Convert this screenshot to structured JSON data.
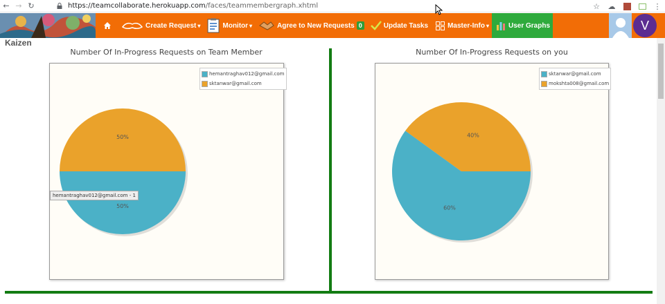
{
  "browser": {
    "url_host": "https://teamcollaborate.herokuapp.com",
    "url_path": "/faces/teammembergraph.xhtml"
  },
  "nav": {
    "items": [
      {
        "label": "Create Request",
        "icon": "handshake-icon",
        "caret": true
      },
      {
        "label": "Monitor",
        "icon": "clipboard-icon",
        "caret": true
      },
      {
        "label": "Agree to New Requests",
        "icon": "agree-icon",
        "caret": false,
        "badge": "0"
      },
      {
        "label": "Update Tasks",
        "icon": "check-icon",
        "caret": false
      },
      {
        "label": "Master-Info",
        "icon": "grid-icon",
        "caret": true
      },
      {
        "label": "User Graphs",
        "icon": "bar-chart-icon",
        "caret": false,
        "active": true
      }
    ],
    "avatar_letter": "V"
  },
  "page": {
    "title": "Kaizen"
  },
  "colors": {
    "nav_bg": "#f26d06",
    "divider": "#137c13",
    "slice_blue": "#4bb1c7",
    "slice_orange": "#eaa22b"
  },
  "charts": [
    {
      "title": "Number Of In-Progress Requests on Team Member",
      "tooltip": "hemantraghav012@gmail.com - 1"
    },
    {
      "title": "Number Of In-Progress Requests on you"
    }
  ],
  "chart_data": [
    {
      "type": "pie",
      "title": "Number Of In-Progress Requests on Team Member",
      "legend_position": "top-right",
      "slices": [
        {
          "label": "hemantraghav012@gmail.com",
          "value": 50,
          "value_text": "50%",
          "color": "#4bb1c7"
        },
        {
          "label": "sktanwar@gmail.com",
          "value": 50,
          "value_text": "50%",
          "color": "#eaa22b"
        }
      ]
    },
    {
      "type": "pie",
      "title": "Number Of In-Progress Requests on you",
      "legend_position": "top-right",
      "slices": [
        {
          "label": "sktanwar@gmail.com",
          "value": 60,
          "value_text": "60%",
          "color": "#4bb1c7"
        },
        {
          "label": "mokshta008@gmail.com",
          "value": 40,
          "value_text": "40%",
          "color": "#eaa22b"
        }
      ]
    }
  ]
}
